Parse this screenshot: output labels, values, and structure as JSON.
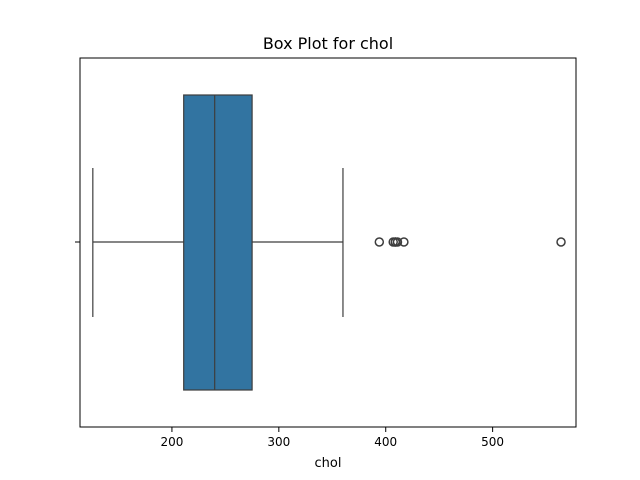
{
  "chart_data": {
    "type": "box",
    "title": "Box Plot for chol",
    "xlabel": "chol",
    "ylabel": "",
    "orientation": "horizontal",
    "xlim": [
      114,
      578
    ],
    "xticks": [
      200,
      300,
      400,
      500
    ],
    "xtick_labels": [
      "200",
      "300",
      "400",
      "500"
    ],
    "grid": false,
    "box": {
      "whisker_low": 126,
      "q1": 211,
      "median": 240,
      "q3": 275,
      "whisker_high": 360,
      "outliers": [
        394,
        407,
        409,
        409,
        411,
        417,
        564
      ]
    },
    "colors": {
      "box_fill": "#3274a1",
      "lines": "#3d3d3d",
      "axes": "#000000"
    }
  }
}
